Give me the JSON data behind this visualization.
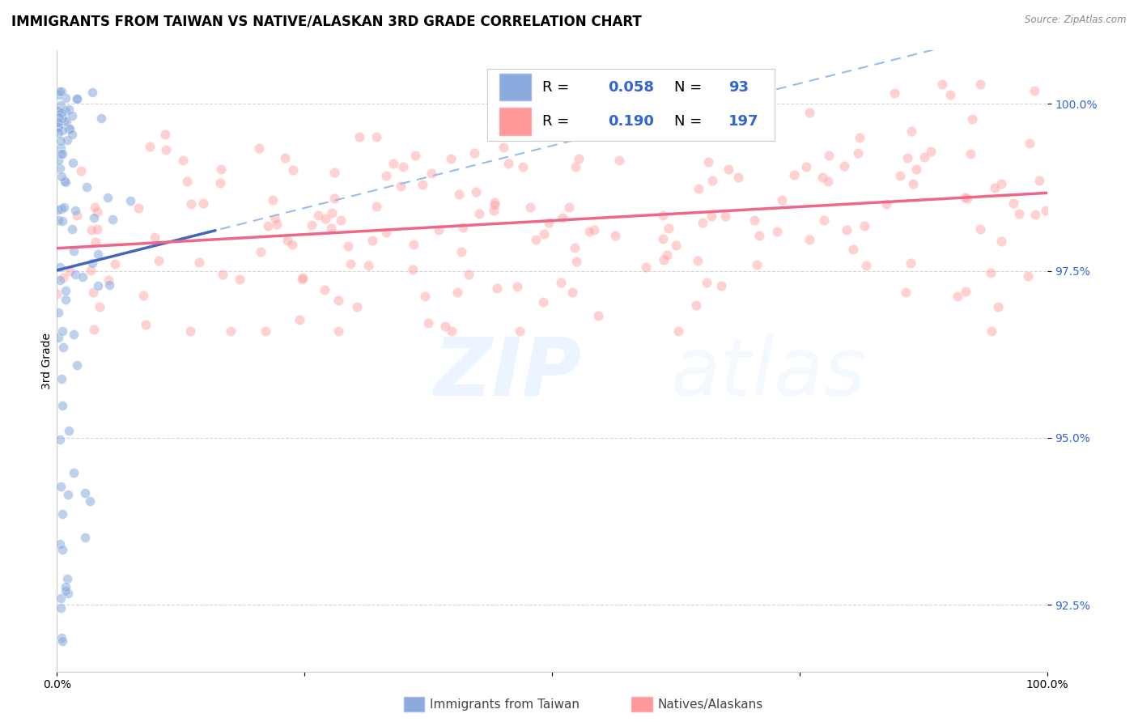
{
  "title": "IMMIGRANTS FROM TAIWAN VS NATIVE/ALASKAN 3RD GRADE CORRELATION CHART",
  "source": "Source: ZipAtlas.com",
  "ylabel": "3rd Grade",
  "xlim": [
    0.0,
    1.0
  ],
  "ylim": [
    0.915,
    1.008
  ],
  "yticks": [
    0.925,
    0.95,
    0.975,
    1.0
  ],
  "ytick_labels": [
    "92.5%",
    "95.0%",
    "97.5%",
    "100.0%"
  ],
  "xticks": [
    0.0,
    0.25,
    0.5,
    0.75,
    1.0
  ],
  "xtick_labels": [
    "0.0%",
    "",
    "",
    "",
    "100.0%"
  ],
  "blue_color": "#88AADD",
  "pink_color": "#FF9999",
  "blue_line_color": "#4466BB",
  "pink_line_color": "#EE6688",
  "dashed_line_color": "#99BBEE",
  "watermark_zip": "ZIP",
  "watermark_atlas": "atlas",
  "background_color": "#FFFFFF",
  "grid_color": "#CCCCCC",
  "title_fontsize": 12,
  "label_fontsize": 10,
  "tick_fontsize": 10
}
